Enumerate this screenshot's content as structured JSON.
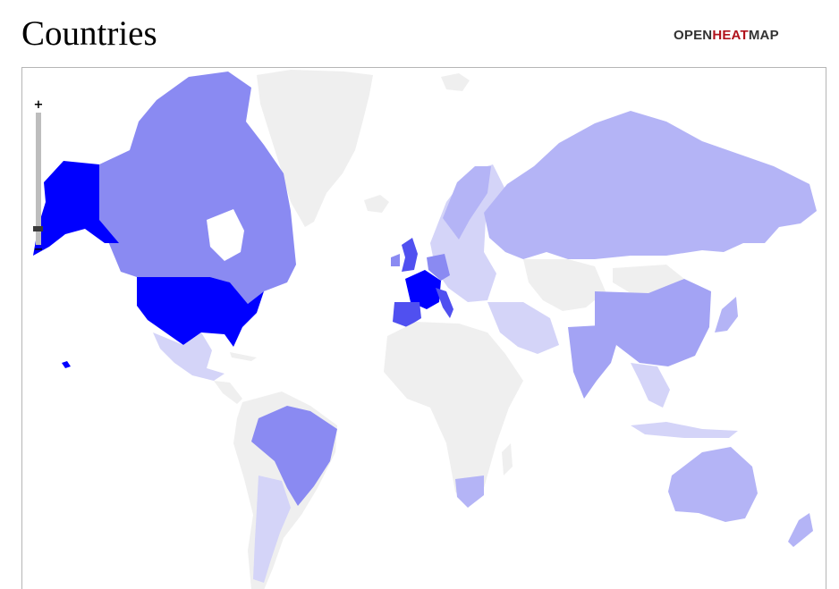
{
  "header": {
    "title": "Countries"
  },
  "brand": {
    "open": "OPEN",
    "heat": "HEAT",
    "map": "MAP"
  },
  "map": {
    "zoom": {
      "plus_label": "+",
      "minus_label": "−",
      "level_fraction": 0.05
    },
    "colors": {
      "no_data": "#efefef",
      "very_light": "#d4d4f8",
      "light": "#b4b4f6",
      "medium_light": "#a3a3f4",
      "medium": "#8a8af2",
      "strong": "#5050f0",
      "max": "#0000ff"
    },
    "highlighted_countries": [
      {
        "name": "United States",
        "level": "max"
      },
      {
        "name": "France",
        "level": "max"
      },
      {
        "name": "United Kingdom",
        "level": "strong"
      },
      {
        "name": "Italy",
        "level": "strong"
      },
      {
        "name": "Spain",
        "level": "strong"
      },
      {
        "name": "Canada",
        "level": "medium"
      },
      {
        "name": "Brazil",
        "level": "medium"
      },
      {
        "name": "Germany",
        "level": "medium"
      },
      {
        "name": "Russia",
        "level": "light"
      },
      {
        "name": "China",
        "level": "medium_light"
      },
      {
        "name": "India",
        "level": "medium_light"
      },
      {
        "name": "Australia",
        "level": "light"
      },
      {
        "name": "Mexico",
        "level": "very_light"
      },
      {
        "name": "Argentina",
        "level": "very_light"
      }
    ]
  }
}
